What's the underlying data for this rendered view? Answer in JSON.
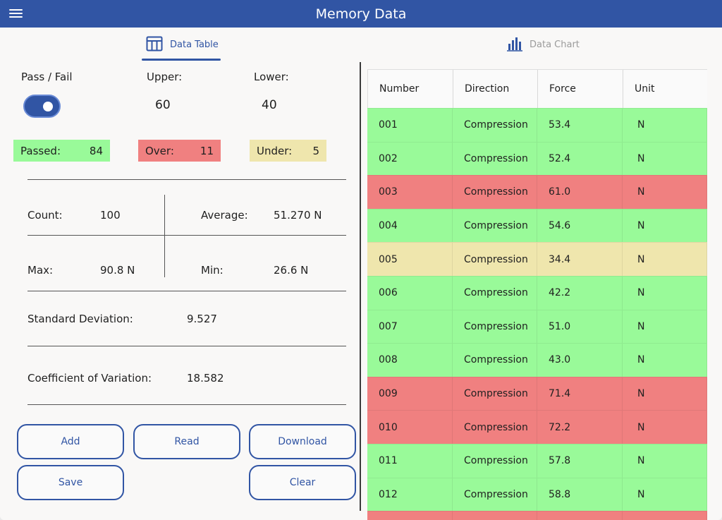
{
  "header": {
    "title": "Memory Data"
  },
  "tabs": {
    "table_label": "Data Table",
    "chart_label": "Data Chart"
  },
  "limits": {
    "pass_fail_label": "Pass / Fail",
    "upper_label": "Upper:",
    "upper_value": "60",
    "lower_label": "Lower:",
    "lower_value": "40",
    "pass_fail_on": true
  },
  "results": {
    "passed_label": "Passed:",
    "passed_value": "84",
    "over_label": "Over:",
    "over_value": "11",
    "under_label": "Under:",
    "under_value": "5"
  },
  "stats": {
    "count_label": "Count:",
    "count_value": "100",
    "average_label": "Average:",
    "average_value": "51.270 N",
    "max_label": "Max:",
    "max_value": "90.8 N",
    "min_label": "Min:",
    "min_value": "26.6 N",
    "stddev_label": "Standard Deviation:",
    "stddev_value": "9.527",
    "cov_label": "Coefficient of Variation:",
    "cov_value": "18.582"
  },
  "buttons": {
    "add": "Add",
    "read": "Read",
    "download": "Download",
    "save": "Save",
    "clear": "Clear"
  },
  "colors": {
    "accent": "#3155a4",
    "passed": "#99fa99",
    "over": "#f08080",
    "under": "#efe6ad"
  },
  "table": {
    "columns": [
      "Number",
      "Direction",
      "Force",
      "Unit"
    ],
    "rows": [
      {
        "number": "001",
        "direction": "Compression",
        "force": "53.4",
        "unit": "N",
        "status": "passed"
      },
      {
        "number": "002",
        "direction": "Compression",
        "force": "52.4",
        "unit": "N",
        "status": "passed"
      },
      {
        "number": "003",
        "direction": "Compression",
        "force": "61.0",
        "unit": "N",
        "status": "over"
      },
      {
        "number": "004",
        "direction": "Compression",
        "force": "54.6",
        "unit": "N",
        "status": "passed"
      },
      {
        "number": "005",
        "direction": "Compression",
        "force": "34.4",
        "unit": "N",
        "status": "under"
      },
      {
        "number": "006",
        "direction": "Compression",
        "force": "42.2",
        "unit": "N",
        "status": "passed"
      },
      {
        "number": "007",
        "direction": "Compression",
        "force": "51.0",
        "unit": "N",
        "status": "passed"
      },
      {
        "number": "008",
        "direction": "Compression",
        "force": "43.0",
        "unit": "N",
        "status": "passed"
      },
      {
        "number": "009",
        "direction": "Compression",
        "force": "71.4",
        "unit": "N",
        "status": "over"
      },
      {
        "number": "010",
        "direction": "Compression",
        "force": "72.2",
        "unit": "N",
        "status": "over"
      },
      {
        "number": "011",
        "direction": "Compression",
        "force": "57.8",
        "unit": "N",
        "status": "passed"
      },
      {
        "number": "012",
        "direction": "Compression",
        "force": "58.8",
        "unit": "N",
        "status": "passed"
      },
      {
        "number": "",
        "direction": "",
        "force": "",
        "unit": "",
        "status": "over"
      }
    ]
  }
}
